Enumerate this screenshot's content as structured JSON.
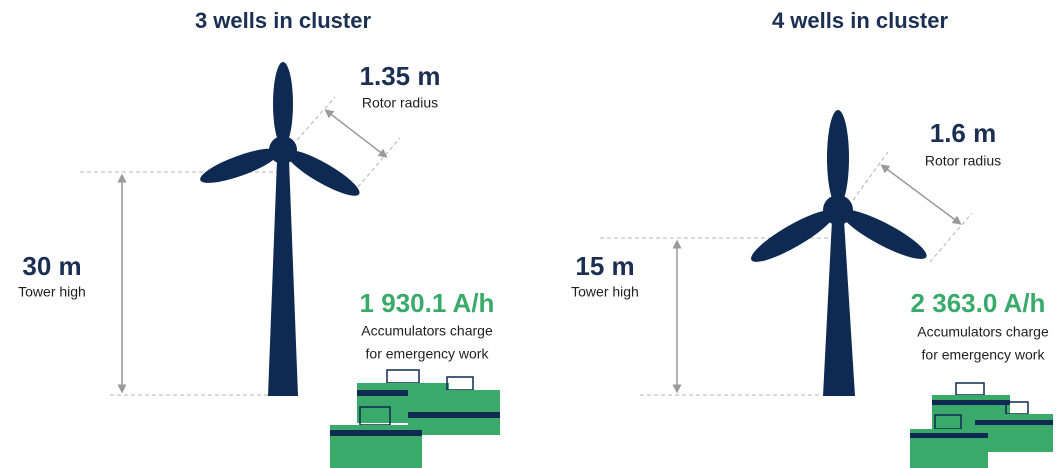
{
  "panels": [
    {
      "title": "3 wells in cluster",
      "rotor_value": "1.35 m",
      "rotor_label": "Rotor radius",
      "tower_value": "30 m",
      "tower_label": "Tower high",
      "charge_value": "1 930.1 A/h",
      "charge_lines": [
        "Accumulators charge",
        "for emergency work"
      ]
    },
    {
      "title": "4 wells in cluster",
      "rotor_value": "1.6 m",
      "rotor_label": "Rotor radius",
      "tower_value": "15 m",
      "tower_label": "Tower high",
      "charge_value": "2 363.0 A/h",
      "charge_lines": [
        "Accumulators charge",
        "for emergency work"
      ]
    }
  ]
}
